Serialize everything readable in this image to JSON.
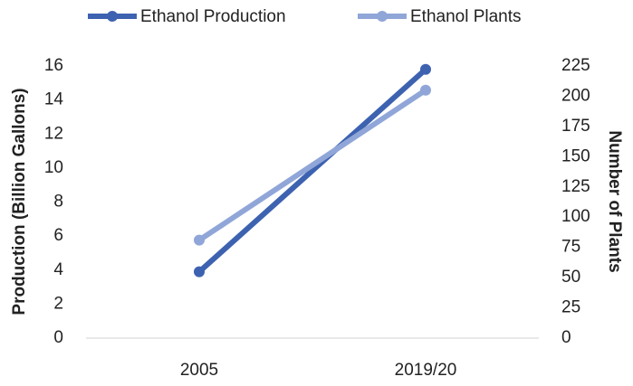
{
  "chart_data": {
    "type": "line",
    "categories": [
      "2005",
      "2019/20"
    ],
    "series": [
      {
        "name": "Ethanol Production",
        "color": "#3d62b0",
        "values": [
          3.9,
          15.8
        ]
      },
      {
        "name": "Ethanol Plants",
        "color": "#90a6d8",
        "values": [
          81,
          205
        ],
        "axis": "y2"
      }
    ],
    "ylabel": "Production (Billion Gallons)",
    "y2label": "Number of Plants",
    "ylim": [
      0,
      16
    ],
    "yticks": [
      0,
      2,
      4,
      6,
      8,
      10,
      12,
      14,
      16
    ],
    "y2lim": [
      0,
      225
    ],
    "y2ticks": [
      0,
      25,
      50,
      75,
      100,
      125,
      150,
      175,
      200,
      225
    ],
    "grid": false,
    "legend": "top"
  }
}
